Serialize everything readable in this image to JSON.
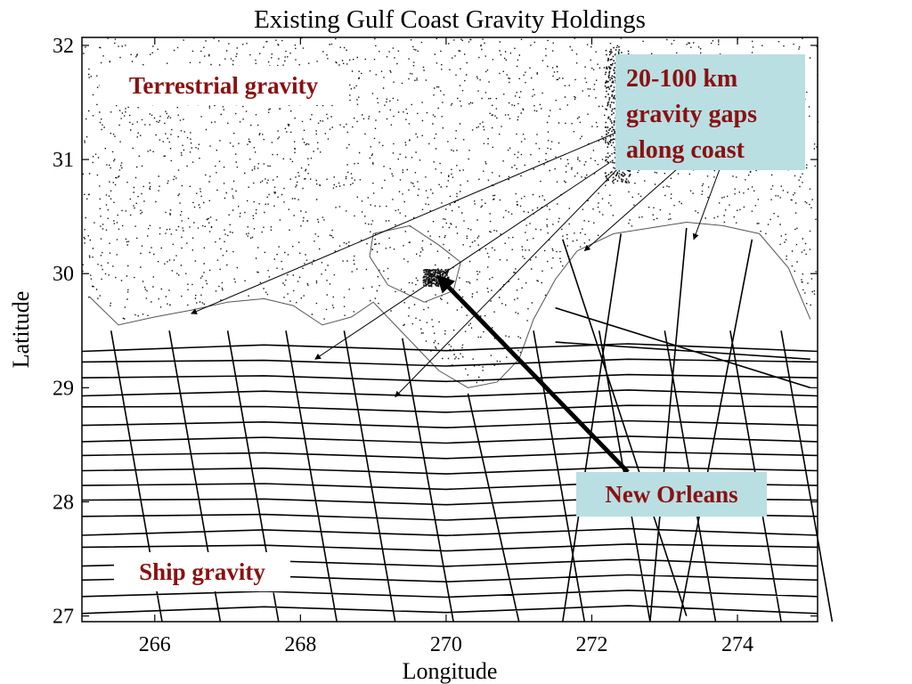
{
  "chart_data": {
    "type": "scatter",
    "title": "Existing Gulf Coast Gravity Holdings",
    "xlabel": "Longitude",
    "ylabel": "Latitude",
    "xlim": [
      265,
      275.1
    ],
    "ylim": [
      26.95,
      32.07
    ],
    "xticks": [
      266,
      268,
      270,
      272,
      274
    ],
    "yticks": [
      27,
      28,
      29,
      30,
      31,
      32
    ],
    "grid": false,
    "annotations": {
      "terrestrial": "Terrestrial gravity",
      "ship": "Ship gravity",
      "gaps": [
        "20-100 km",
        "gravity gaps",
        "along coast"
      ],
      "new_orleans": "New Orleans"
    },
    "new_orleans_location": {
      "x": 269.9,
      "y": 29.97
    },
    "gap_arrow_targets": [
      {
        "x": 266.5,
        "y": 29.65
      },
      {
        "x": 268.2,
        "y": 29.25
      },
      {
        "x": 269.3,
        "y": 28.92
      },
      {
        "x": 271.9,
        "y": 30.2
      },
      {
        "x": 273.4,
        "y": 30.3
      }
    ]
  }
}
